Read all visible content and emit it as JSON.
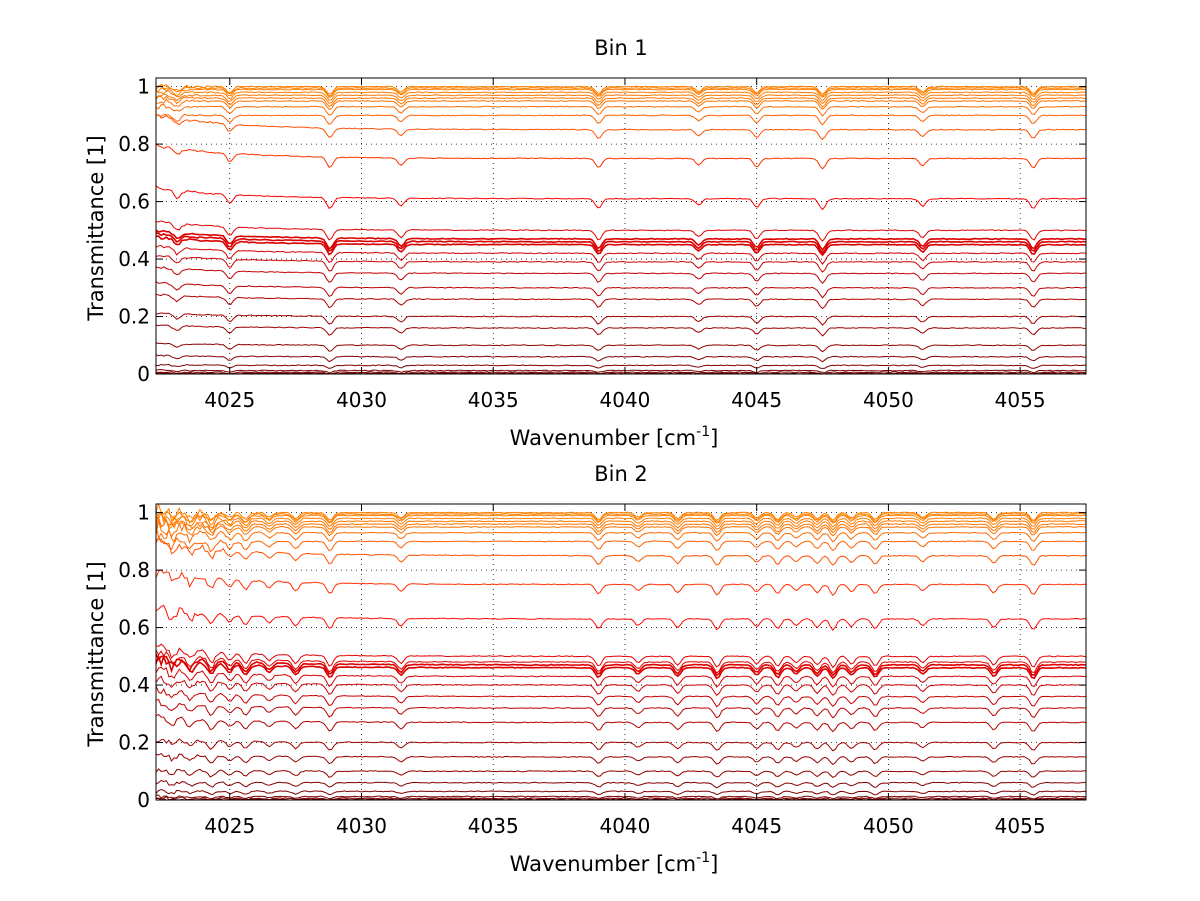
{
  "chart_data": [
    {
      "type": "line",
      "title": "Bin 1",
      "xlabel": "Wavenumber [cm",
      "xlabel_sup": "-1",
      "xlabel_end": "]",
      "ylabel": "Transmittance [1]",
      "xlim": [
        4022.2,
        4057.5
      ],
      "ylim": [
        0,
        1.03
      ],
      "x_ticks": [
        4025,
        4030,
        4035,
        4040,
        4045,
        4050,
        4055
      ],
      "x_tick_labels": [
        "4025",
        "4030",
        "4035",
        "4040",
        "4045",
        "4050",
        "4055"
      ],
      "y_ticks": [
        0,
        0.2,
        0.4,
        0.6,
        0.8,
        1
      ],
      "y_tick_labels": [
        "0",
        "0.2",
        "0.4",
        "0.6",
        "0.8",
        "1"
      ],
      "grid": true,
      "series_levels": [
        0.002,
        0.006,
        0.012,
        0.03,
        0.06,
        0.1,
        0.16,
        0.2,
        0.26,
        0.3,
        0.35,
        0.39,
        0.42,
        0.45,
        0.46,
        0.47,
        0.5,
        0.61,
        0.75,
        0.85,
        0.9,
        0.93,
        0.95,
        0.96,
        0.97,
        0.98,
        0.99,
        0.995,
        1.0
      ],
      "absorption_lines": [
        4023.0,
        4025.0,
        4028.8,
        4031.5,
        4039.0,
        4042.8,
        4045.0,
        4047.5,
        4051.3,
        4055.5
      ],
      "edge_noise": 0.015
    },
    {
      "type": "line",
      "title": "Bin 2",
      "xlabel": "Wavenumber [cm",
      "xlabel_sup": "-1",
      "xlabel_end": "]",
      "ylabel": "Transmittance [1]",
      "xlim": [
        4022.2,
        4057.5
      ],
      "ylim": [
        0,
        1.03
      ],
      "x_ticks": [
        4025,
        4030,
        4035,
        4040,
        4045,
        4050,
        4055
      ],
      "x_tick_labels": [
        "4025",
        "4030",
        "4035",
        "4040",
        "4045",
        "4050",
        "4055"
      ],
      "y_ticks": [
        0,
        0.2,
        0.4,
        0.6,
        0.8,
        1
      ],
      "y_tick_labels": [
        "0",
        "0.2",
        "0.4",
        "0.6",
        "0.8",
        "1"
      ],
      "grid": true,
      "series_levels": [
        0.002,
        0.006,
        0.012,
        0.03,
        0.06,
        0.1,
        0.15,
        0.2,
        0.27,
        0.32,
        0.36,
        0.4,
        0.43,
        0.46,
        0.47,
        0.48,
        0.5,
        0.63,
        0.75,
        0.85,
        0.9,
        0.93,
        0.95,
        0.96,
        0.97,
        0.98,
        0.99,
        0.995,
        1.0
      ],
      "absorption_lines": [
        4022.8,
        4023.5,
        4024.3,
        4025.0,
        4025.6,
        4026.5,
        4027.5,
        4028.8,
        4031.5,
        4039.0,
        4040.5,
        4042.0,
        4043.5,
        4045.0,
        4045.8,
        4046.5,
        4047.3,
        4047.9,
        4048.6,
        4049.5,
        4051.3,
        4054.0,
        4055.5
      ],
      "edge_noise": 0.05
    }
  ]
}
